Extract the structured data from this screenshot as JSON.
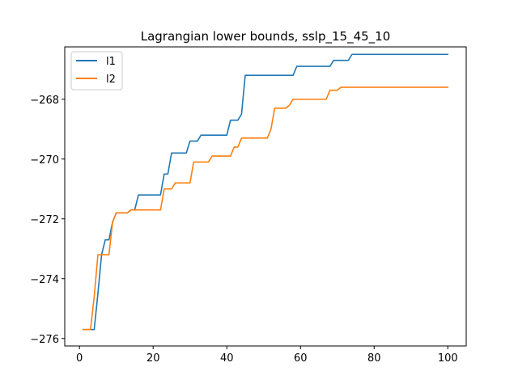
{
  "chart_data": {
    "type": "line",
    "title": "Lagrangian lower bounds, sslp_15_45_10",
    "xlabel": "",
    "ylabel": "",
    "xlim": [
      -4.0,
      105.0
    ],
    "ylim": [
      -276.25,
      -266.25
    ],
    "xticks": [
      0,
      20,
      40,
      60,
      80,
      100
    ],
    "xtick_labels": [
      "0",
      "20",
      "40",
      "60",
      "80",
      "100"
    ],
    "yticks": [
      -276,
      -274,
      -272,
      -270,
      -268
    ],
    "ytick_labels": [
      "−276",
      "−274",
      "−272",
      "−270",
      "−268"
    ],
    "grid": false,
    "legend_position": "top-left",
    "series": [
      {
        "name": "l1",
        "color": "#1f77b4",
        "x": [
          1,
          2,
          3,
          4,
          5,
          6,
          7,
          8,
          9,
          10,
          11,
          12,
          13,
          14,
          15,
          16,
          17,
          18,
          19,
          20,
          21,
          22,
          23,
          24,
          25,
          26,
          27,
          28,
          29,
          30,
          31,
          32,
          33,
          34,
          35,
          36,
          37,
          38,
          39,
          40,
          41,
          42,
          43,
          44,
          45,
          46,
          47,
          48,
          49,
          50,
          51,
          52,
          53,
          54,
          55,
          56,
          57,
          58,
          59,
          60,
          61,
          62,
          63,
          64,
          65,
          66,
          67,
          68,
          69,
          70,
          71,
          72,
          73,
          74,
          75,
          76,
          77,
          78,
          79,
          80,
          81,
          82,
          83,
          84,
          85,
          86,
          87,
          88,
          89,
          90,
          91,
          92,
          93,
          94,
          95,
          96,
          97,
          98,
          99,
          100
        ],
        "y": [
          -275.7,
          -275.7,
          -275.7,
          -275.7,
          -274.5,
          -273.2,
          -272.7,
          -272.7,
          -272.1,
          -271.8,
          -271.8,
          -271.8,
          -271.8,
          -271.7,
          -271.7,
          -271.2,
          -271.2,
          -271.2,
          -271.2,
          -271.2,
          -271.2,
          -271.2,
          -270.5,
          -270.5,
          -269.8,
          -269.8,
          -269.8,
          -269.8,
          -269.8,
          -269.4,
          -269.4,
          -269.4,
          -269.2,
          -269.2,
          -269.2,
          -269.2,
          -269.2,
          -269.2,
          -269.2,
          -269.2,
          -268.7,
          -268.7,
          -268.7,
          -268.5,
          -267.2,
          -267.2,
          -267.2,
          -267.2,
          -267.2,
          -267.2,
          -267.2,
          -267.2,
          -267.2,
          -267.2,
          -267.2,
          -267.2,
          -267.2,
          -267.2,
          -266.9,
          -266.9,
          -266.9,
          -266.9,
          -266.9,
          -266.9,
          -266.9,
          -266.9,
          -266.9,
          -266.9,
          -266.7,
          -266.7,
          -266.7,
          -266.7,
          -266.7,
          -266.5,
          -266.5,
          -266.5,
          -266.5,
          -266.5,
          -266.5,
          -266.5,
          -266.5,
          -266.5,
          -266.5,
          -266.5,
          -266.5,
          -266.5,
          -266.5,
          -266.5,
          -266.5,
          -266.5,
          -266.5,
          -266.5,
          -266.5,
          -266.5,
          -266.5,
          -266.5,
          -266.5,
          -266.5,
          -266.5,
          -266.5
        ]
      },
      {
        "name": "l2",
        "color": "#ff7f0e",
        "x": [
          1,
          2,
          3,
          4,
          5,
          6,
          7,
          8,
          9,
          10,
          11,
          12,
          13,
          14,
          15,
          16,
          17,
          18,
          19,
          20,
          21,
          22,
          23,
          24,
          25,
          26,
          27,
          28,
          29,
          30,
          31,
          32,
          33,
          34,
          35,
          36,
          37,
          38,
          39,
          40,
          41,
          42,
          43,
          44,
          45,
          46,
          47,
          48,
          49,
          50,
          51,
          52,
          53,
          54,
          55,
          56,
          57,
          58,
          59,
          60,
          61,
          62,
          63,
          64,
          65,
          66,
          67,
          68,
          69,
          70,
          71,
          72,
          73,
          74,
          75,
          76,
          77,
          78,
          79,
          80,
          81,
          82,
          83,
          84,
          85,
          86,
          87,
          88,
          89,
          90,
          91,
          92,
          93,
          94,
          95,
          96,
          97,
          98,
          99,
          100
        ],
        "y": [
          -275.7,
          -275.7,
          -275.7,
          -274.6,
          -273.2,
          -273.2,
          -273.2,
          -273.2,
          -272.1,
          -271.8,
          -271.8,
          -271.8,
          -271.8,
          -271.7,
          -271.7,
          -271.7,
          -271.7,
          -271.7,
          -271.7,
          -271.7,
          -271.7,
          -271.7,
          -271.0,
          -271.0,
          -271.0,
          -270.8,
          -270.8,
          -270.8,
          -270.8,
          -270.8,
          -270.1,
          -270.1,
          -270.1,
          -270.1,
          -270.1,
          -269.9,
          -269.9,
          -269.9,
          -269.9,
          -269.9,
          -269.9,
          -269.6,
          -269.6,
          -269.3,
          -269.3,
          -269.3,
          -269.3,
          -269.3,
          -269.3,
          -269.3,
          -269.3,
          -269.0,
          -268.3,
          -268.3,
          -268.3,
          -268.3,
          -268.2,
          -268.0,
          -268.0,
          -268.0,
          -268.0,
          -268.0,
          -268.0,
          -268.0,
          -268.0,
          -268.0,
          -268.0,
          -267.7,
          -267.7,
          -267.7,
          -267.6,
          -267.6,
          -267.6,
          -267.6,
          -267.6,
          -267.6,
          -267.6,
          -267.6,
          -267.6,
          -267.6,
          -267.6,
          -267.6,
          -267.6,
          -267.6,
          -267.6,
          -267.6,
          -267.6,
          -267.6,
          -267.6,
          -267.6,
          -267.6,
          -267.6,
          -267.6,
          -267.6,
          -267.6,
          -267.6,
          -267.6,
          -267.6,
          -267.6,
          -267.6
        ]
      }
    ]
  }
}
